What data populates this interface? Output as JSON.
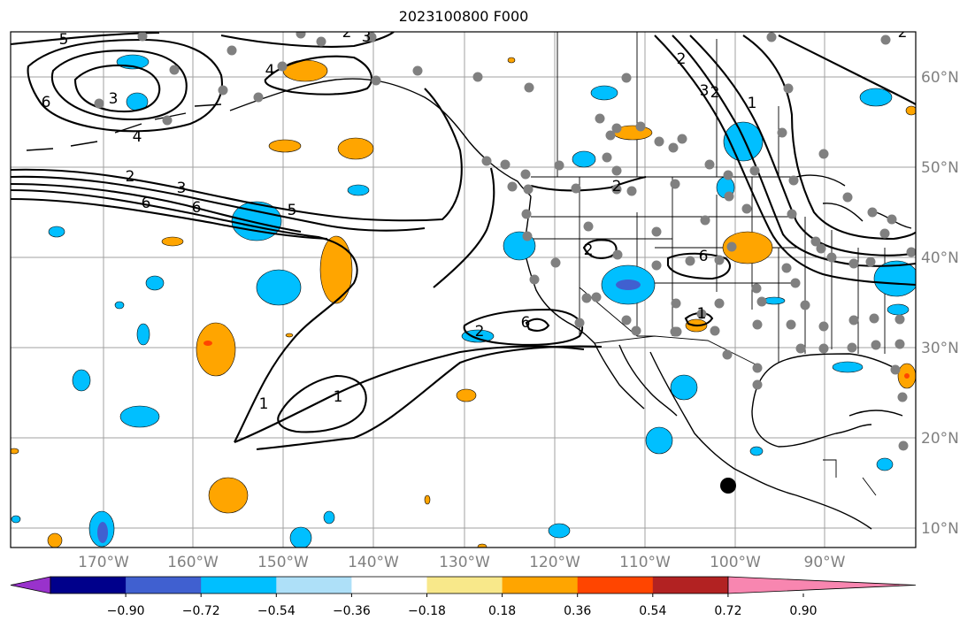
{
  "title": "2023100800 F000",
  "lon_labels": [
    "170°W",
    "160°W",
    "150°W",
    "140°W",
    "130°W",
    "120°W",
    "110°W",
    "100°W",
    "90°W"
  ],
  "lat_labels": [
    "60°N",
    "50°N",
    "40°N",
    "30°N",
    "20°N",
    "10°N"
  ],
  "contour_labels": [
    "5",
    "6",
    "4",
    "3",
    "2",
    "3",
    "6",
    "5",
    "6",
    "2",
    "3",
    "4",
    "1",
    "2",
    "3",
    "2",
    "1",
    "1",
    "2",
    "6",
    "2",
    "2",
    "6",
    "1",
    "2"
  ],
  "colorbar": {
    "ticks": [
      "−0.90",
      "−0.72",
      "−0.54",
      "−0.36",
      "−0.18",
      "0.18",
      "0.36",
      "0.54",
      "0.72",
      "0.90"
    ],
    "colors": [
      "#9932cc",
      "#00008b",
      "#4060d0",
      "#00bfff",
      "#aee0f8",
      "#ffffff",
      "#f8e88a",
      "#ffa500",
      "#ff4500",
      "#b22222",
      "#f886b0"
    ]
  },
  "colors": {
    "positive": "#ffa500",
    "positive_strong": "#ff4500",
    "negative": "#00bfff",
    "negative_strong": "#4060d0",
    "station": "#808080",
    "grid": "#a0a0a0"
  }
}
